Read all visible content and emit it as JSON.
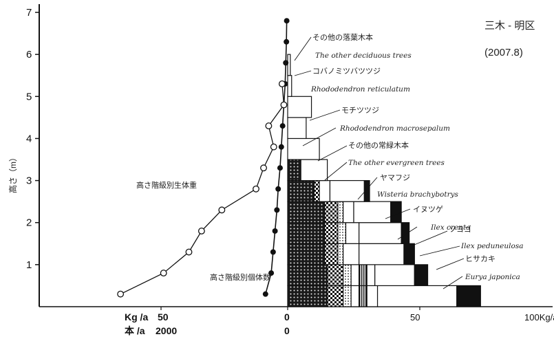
{
  "chart_data": {
    "type": "stratification",
    "site_label": "三木 - 明区",
    "date_label": "(2007.8)",
    "y_axis_label": "高さ（m）",
    "y_ticks": [
      "1",
      "2",
      "3",
      "4",
      "5",
      "6",
      "7"
    ],
    "ylim": [
      0,
      7
    ],
    "left_axis": {
      "unit_label_kg": "Kg /a",
      "unit_label_count": "本 /a",
      "tick_kg": "50",
      "tick_count": "2000",
      "tick_zero": "0"
    },
    "right_axis": {
      "ticks": [
        "50",
        "100Kg/a"
      ],
      "zero_label": "0"
    },
    "biomass_series": {
      "label": "高さ階級別生体重",
      "unit": "Kg/a",
      "points": [
        {
          "h": 0.3,
          "v": 66
        },
        {
          "h": 0.8,
          "v": 49
        },
        {
          "h": 1.3,
          "v": 39
        },
        {
          "h": 1.8,
          "v": 34
        },
        {
          "h": 2.3,
          "v": 26
        },
        {
          "h": 2.8,
          "v": 12.5
        },
        {
          "h": 3.3,
          "v": 9.5
        },
        {
          "h": 3.8,
          "v": 5.5
        },
        {
          "h": 4.3,
          "v": 7.5
        },
        {
          "h": 4.8,
          "v": 1.5
        },
        {
          "h": 5.3,
          "v": 2.2
        }
      ]
    },
    "count_series": {
      "label": "高さ階級別個体数",
      "unit": "本/a",
      "points": [
        {
          "h": 0.3,
          "v": 350
        },
        {
          "h": 0.8,
          "v": 260
        },
        {
          "h": 1.3,
          "v": 230
        },
        {
          "h": 1.8,
          "v": 200
        },
        {
          "h": 2.3,
          "v": 170
        },
        {
          "h": 2.8,
          "v": 150
        },
        {
          "h": 3.3,
          "v": 120
        },
        {
          "h": 3.8,
          "v": 100
        },
        {
          "h": 4.3,
          "v": 80
        },
        {
          "h": 4.8,
          "v": 60
        },
        {
          "h": 5.3,
          "v": 40
        },
        {
          "h": 5.8,
          "v": 30
        },
        {
          "h": 6.3,
          "v": 20
        },
        {
          "h": 6.8,
          "v": 15
        }
      ]
    },
    "species": [
      {
        "ja": "その他の落葉木本",
        "en": "The other deciduous trees",
        "fill": "#ffffff"
      },
      {
        "ja": "コバノミツバツツジ",
        "en": "Rhododendron reticulatum",
        "fill": "#ffffff"
      },
      {
        "ja": "モチツツジ",
        "en": "Rhododendron macrosepalum",
        "fill": "#ffffff"
      },
      {
        "ja": "その他の常緑木本",
        "en": "The other evergreen trees",
        "fill": "#ffffff"
      },
      {
        "ja": "ヤマフジ",
        "en": "Wisteria brachybotrys",
        "fill": "#111111"
      },
      {
        "ja": "イヌツゲ",
        "en": "Ilex crenta",
        "fill": "#ffffff"
      },
      {
        "ja": "ソヨゴ",
        "en": "Ilex peduneulosa",
        "fill": "#ffffff"
      },
      {
        "ja": "ヒサカキ",
        "en": "Eurya japonica",
        "fill": "#111111"
      }
    ],
    "layers": [
      {
        "h0": 0,
        "h1": 0.5,
        "segments": [
          {
            "type": "dots",
            "v": 15
          },
          {
            "type": "checker",
            "v": 6
          },
          {
            "type": "dots2",
            "v": 3
          },
          {
            "type": "white",
            "v": 3
          },
          {
            "type": "stripes",
            "v": 3
          },
          {
            "type": "white",
            "v": 4
          },
          {
            "type": "white",
            "v": 30
          },
          {
            "type": "black",
            "v": 9
          }
        ]
      },
      {
        "h0": 0.5,
        "h1": 1.0,
        "segments": [
          {
            "type": "dots",
            "v": 15
          },
          {
            "type": "checker",
            "v": 6
          },
          {
            "type": "dots2",
            "v": 3
          },
          {
            "type": "white",
            "v": 3
          },
          {
            "type": "stripes",
            "v": 3
          },
          {
            "type": "white",
            "v": 3
          },
          {
            "type": "white",
            "v": 15
          },
          {
            "type": "black",
            "v": 5
          }
        ]
      },
      {
        "h0": 1.0,
        "h1": 1.5,
        "segments": [
          {
            "type": "dots",
            "v": 14
          },
          {
            "type": "checker",
            "v": 5
          },
          {
            "type": "dots2",
            "v": 2
          },
          {
            "type": "white",
            "v": 6
          },
          {
            "type": "white",
            "v": 17
          },
          {
            "type": "black",
            "v": 4
          }
        ]
      },
      {
        "h0": 1.5,
        "h1": 2.0,
        "segments": [
          {
            "type": "dots",
            "v": 14
          },
          {
            "type": "checker",
            "v": 5
          },
          {
            "type": "dots2",
            "v": 3
          },
          {
            "type": "white",
            "v": 5
          },
          {
            "type": "white",
            "v": 16
          },
          {
            "type": "black",
            "v": 3
          }
        ]
      },
      {
        "h0": 2.0,
        "h1": 2.5,
        "segments": [
          {
            "type": "dots",
            "v": 14
          },
          {
            "type": "checker",
            "v": 5
          },
          {
            "type": "dots2",
            "v": 2
          },
          {
            "type": "white",
            "v": 4
          },
          {
            "type": "white",
            "v": 14
          },
          {
            "type": "black",
            "v": 4
          }
        ]
      },
      {
        "h0": 2.5,
        "h1": 3.0,
        "segments": [
          {
            "type": "dots",
            "v": 10
          },
          {
            "type": "checker",
            "v": 2
          },
          {
            "type": "white",
            "v": 4
          },
          {
            "type": "white",
            "v": 13
          },
          {
            "type": "black",
            "v": 2
          }
        ]
      },
      {
        "h0": 3.0,
        "h1": 3.5,
        "segments": [
          {
            "type": "dots",
            "v": 5
          },
          {
            "type": "white",
            "v": 10
          }
        ]
      },
      {
        "h0": 3.5,
        "h1": 4.0,
        "segments": [
          {
            "type": "white",
            "v": 12
          }
        ]
      },
      {
        "h0": 4.0,
        "h1": 4.5,
        "segments": [
          {
            "type": "white",
            "v": 7
          }
        ]
      },
      {
        "h0": 4.5,
        "h1": 5.0,
        "segments": [
          {
            "type": "white",
            "v": 9
          }
        ]
      },
      {
        "h0": 5.0,
        "h1": 5.5,
        "segments": [
          {
            "type": "white",
            "v": 1.5
          }
        ]
      },
      {
        "h0": 5.5,
        "h1": 6.0,
        "segments": [
          {
            "type": "white",
            "v": 1
          }
        ]
      }
    ],
    "right_vals": {
      "max": 100
    }
  }
}
